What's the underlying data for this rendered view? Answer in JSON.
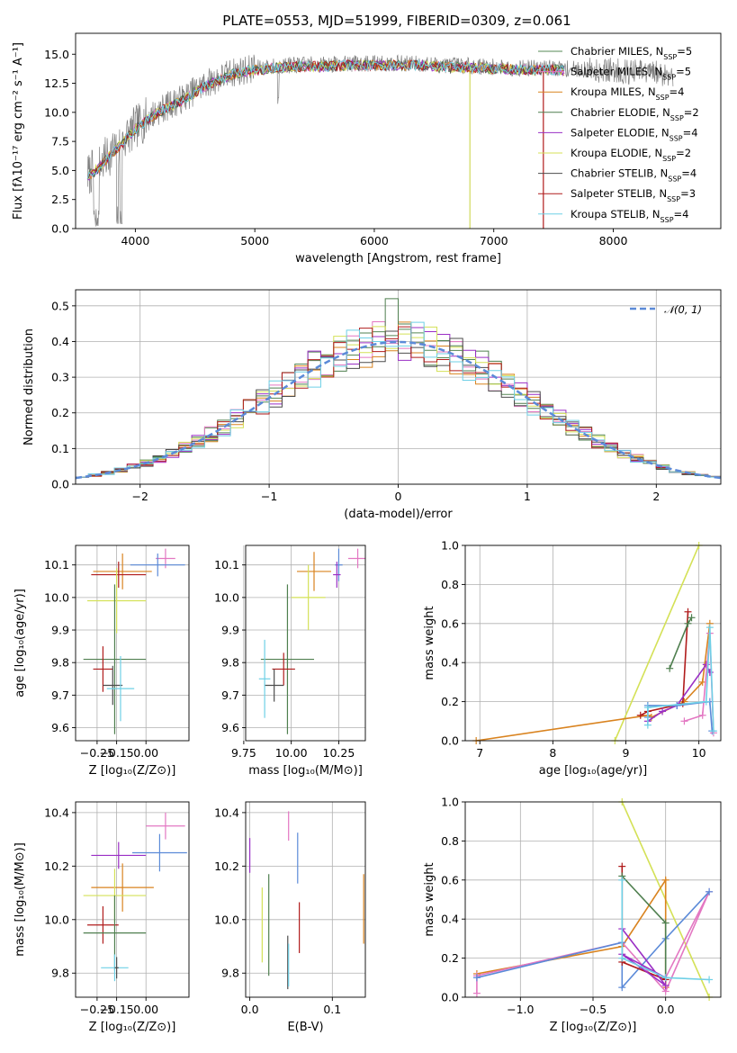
{
  "figure": {
    "title": "PLATE=0553, MJD=51999, FIBERID=0309, z=0.061"
  },
  "colors": {
    "observed": "#808080",
    "series": [
      "#558855",
      "#e377c2",
      "#d9831f",
      "#4f7f4f",
      "#9a2fc5",
      "#d4e157",
      "#4d4d4d",
      "#b01c1c",
      "#6fd0e6"
    ],
    "extra_blue": "#5b8ad8",
    "normal_curve": "#5b8ad8"
  },
  "chart_data": [
    {
      "id": "spectrum",
      "type": "line",
      "xlabel": "wavelength [Angstrom, rest frame]",
      "ylabel": "Flux [fλ10⁻¹⁷ erg cm⁻² s⁻¹ A⁻¹]",
      "xlim": [
        3500,
        8900
      ],
      "ylim": [
        0,
        16.8
      ],
      "xticks": [
        4000,
        5000,
        6000,
        7000,
        8000
      ],
      "yticks": [
        0.0,
        2.5,
        5.0,
        7.5,
        10.0,
        12.5,
        15.0
      ],
      "yticklabels": [
        "0.0",
        "2.5",
        "5.0",
        "7.5",
        "10.0",
        "12.5",
        "15.0"
      ],
      "continuum": [
        [
          3600,
          4.6
        ],
        [
          3700,
          5.4
        ],
        [
          3800,
          6.6
        ],
        [
          3900,
          7.6
        ],
        [
          4000,
          8.7
        ],
        [
          4100,
          9.5
        ],
        [
          4200,
          10.2
        ],
        [
          4300,
          10.7
        ],
        [
          4400,
          11.2
        ],
        [
          4500,
          11.9
        ],
        [
          4600,
          12.5
        ],
        [
          4700,
          12.9
        ],
        [
          4800,
          13.4
        ],
        [
          4900,
          13.6
        ],
        [
          5000,
          13.8
        ],
        [
          5200,
          14.0
        ],
        [
          5400,
          14.1
        ],
        [
          5600,
          14.1
        ],
        [
          5800,
          14.2
        ],
        [
          6000,
          14.2
        ],
        [
          6300,
          14.2
        ],
        [
          6500,
          14.1
        ],
        [
          6800,
          14.0
        ],
        [
          7000,
          13.9
        ],
        [
          7300,
          13.8
        ],
        [
          7500,
          13.8
        ],
        [
          7700,
          13.7
        ],
        [
          8000,
          13.6
        ],
        [
          8300,
          13.4
        ],
        [
          8500,
          13.3
        ]
      ],
      "legend": [
        "Chabrier MILES, N_SSP=5",
        "Salpeter MILES, N_SSP=5",
        "Kroupa MILES, N_SSP=4",
        "Chabrier ELODIE, N_SSP=2",
        "Salpeter ELODIE, N_SSP=4",
        "Kroupa ELODIE, N_SSP=2",
        "Chabrier STELIB, N_SSP=4",
        "Salpeter STELIB, N_SSP=3",
        "Kroupa STELIB, N_SSP=4"
      ],
      "legend_position": "right"
    },
    {
      "id": "residuals",
      "type": "line",
      "xlabel": "(data-model)/error",
      "ylabel": "Normed distribution",
      "xlim": [
        -2.5,
        2.5
      ],
      "ylim": [
        0,
        0.545
      ],
      "xticks": [
        -2,
        -1,
        0,
        1,
        2
      ],
      "xticklabels": [
        "−2",
        "−1",
        "0",
        "1",
        "2"
      ],
      "yticks": [
        0.0,
        0.1,
        0.2,
        0.3,
        0.4,
        0.5
      ],
      "yticklabels": [
        "0.0",
        "0.1",
        "0.2",
        "0.3",
        "0.4",
        "0.5"
      ],
      "bin_width": 0.1,
      "legend": [
        "𝒩(0, 1)"
      ],
      "legend_position": "top-right"
    },
    {
      "id": "age-vs-Z",
      "type": "scatter",
      "xlabel": "Z [log₁₀(Z/Z⊙)]",
      "ylabel": "age  [log₁₀(age/yr)]",
      "xlim": [
        -0.36,
        0.22
      ],
      "ylim": [
        9.56,
        10.16
      ],
      "xticks": [
        -0.25,
        -0.15,
        0.0
      ],
      "xticklabels": [
        "−0.25",
        "−0.15",
        "0.00"
      ],
      "yticks": [
        9.6,
        9.7,
        9.8,
        9.9,
        10.0,
        10.1
      ],
      "yticklabels": [
        "9.6",
        "9.7",
        "9.8",
        "9.9",
        "10.0",
        "10.1"
      ],
      "points": [
        {
          "c": 1,
          "x": 0.1,
          "y": 10.12,
          "xe": 0.05,
          "ye": 0.03
        },
        {
          "c": 9,
          "x": 0.06,
          "y": 10.1,
          "xe": 0.14,
          "ye": 0.035
        },
        {
          "c": 2,
          "x": -0.12,
          "y": 10.08,
          "xe": 0.15,
          "ye": 0.055
        },
        {
          "c": 7,
          "x": -0.14,
          "y": 10.07,
          "xe": 0.14,
          "ye": 0.04
        },
        {
          "c": 5,
          "x": -0.15,
          "y": 9.99,
          "xe": 0.15,
          "ye": 0.1
        },
        {
          "c": 3,
          "x": -0.16,
          "y": 9.81,
          "xe": 0.16,
          "ye": 0.23
        },
        {
          "c": 7,
          "x": -0.22,
          "y": 9.78,
          "xe": 0.05,
          "ye": 0.07
        },
        {
          "c": 6,
          "x": -0.17,
          "y": 9.73,
          "xe": 0.05,
          "ye": 0.06
        },
        {
          "c": 8,
          "x": -0.13,
          "y": 9.72,
          "xe": 0.07,
          "ye": 0.1
        }
      ]
    },
    {
      "id": "age-vs-mass",
      "type": "scatter",
      "xlabel": "mass [log₁₀(M/M⊙)]",
      "ylabel": "",
      "xlim": [
        9.76,
        10.39
      ],
      "ylim": [
        9.56,
        10.16
      ],
      "xticks": [
        9.75,
        10.0,
        10.25
      ],
      "xticklabels": [
        "9.75",
        "10.00",
        "10.25"
      ],
      "yticks": [
        9.6,
        9.7,
        9.8,
        9.9,
        10.0,
        10.1
      ],
      "yticklabels": [
        "9.6",
        "9.7",
        "9.8",
        "9.9",
        "10.0",
        "10.1"
      ],
      "points": [
        {
          "c": 1,
          "x": 10.35,
          "y": 10.12,
          "xe": 0.05,
          "ye": 0.03
        },
        {
          "c": 9,
          "x": 10.25,
          "y": 10.1,
          "xe": 0.02,
          "ye": 0.05
        },
        {
          "c": 2,
          "x": 10.12,
          "y": 10.08,
          "xe": 0.09,
          "ye": 0.06
        },
        {
          "c": 4,
          "x": 10.24,
          "y": 10.07,
          "xe": 0.02,
          "ye": 0.04
        },
        {
          "c": 5,
          "x": 10.09,
          "y": 10.0,
          "xe": 0.09,
          "ye": 0.1
        },
        {
          "c": 3,
          "x": 9.98,
          "y": 9.81,
          "xe": 0.14,
          "ye": 0.23
        },
        {
          "c": 7,
          "x": 9.96,
          "y": 9.78,
          "xe": 0.06,
          "ye": 0.05
        },
        {
          "c": 6,
          "x": 9.91,
          "y": 9.73,
          "xe": 0.05,
          "ye": 0.05
        },
        {
          "c": 8,
          "x": 9.86,
          "y": 9.75,
          "xe": 0.03,
          "ye": 0.12
        }
      ]
    },
    {
      "id": "mass-weight-vs-age",
      "type": "line",
      "xlabel": "age  [log₁₀(age/yr)]",
      "ylabel": "mass weight",
      "xlim": [
        6.8,
        10.3
      ],
      "ylim": [
        0,
        1.0
      ],
      "xticks": [
        7,
        8,
        9,
        10
      ],
      "xticklabels": [
        "7",
        "8",
        "9",
        "10"
      ],
      "yticks": [
        0.0,
        0.2,
        0.4,
        0.6,
        0.8,
        1.0
      ],
      "yticklabels": [
        "0.0",
        "0.2",
        "0.4",
        "0.6",
        "0.8",
        "1.0"
      ],
      "series": [
        {
          "c": 5,
          "points": [
            [
              8.85,
              0.0
            ],
            [
              10.0,
              1.0
            ]
          ]
        },
        {
          "c": 2,
          "points": [
            [
              6.95,
              0.0
            ],
            [
              9.3,
              0.13
            ],
            [
              9.35,
              0.12
            ],
            [
              9.8,
              0.2
            ],
            [
              10.05,
              0.3
            ],
            [
              10.15,
              0.6
            ]
          ]
        },
        {
          "c": 7,
          "points": [
            [
              9.2,
              0.13
            ],
            [
              9.3,
              0.15
            ],
            [
              9.78,
              0.19
            ],
            [
              9.85,
              0.66
            ]
          ]
        },
        {
          "c": 3,
          "points": [
            [
              9.6,
              0.37
            ],
            [
              9.85,
              0.6
            ],
            [
              9.9,
              0.63
            ]
          ]
        },
        {
          "c": 4,
          "points": [
            [
              9.3,
              0.1
            ],
            [
              9.5,
              0.15
            ],
            [
              9.7,
              0.18
            ],
            [
              10.1,
              0.39
            ],
            [
              10.15,
              0.35
            ]
          ]
        },
        {
          "c": 9,
          "points": [
            [
              9.3,
              0.12
            ],
            [
              9.3,
              0.18
            ],
            [
              9.7,
              0.18
            ],
            [
              10.15,
              0.2
            ],
            [
              10.18,
              0.05
            ]
          ]
        },
        {
          "c": 1,
          "points": [
            [
              9.8,
              0.1
            ],
            [
              10.05,
              0.13
            ],
            [
              10.15,
              0.55
            ],
            [
              10.2,
              0.04
            ]
          ]
        },
        {
          "c": 8,
          "points": [
            [
              9.3,
              0.08
            ],
            [
              9.3,
              0.17
            ],
            [
              10.1,
              0.2
            ],
            [
              10.15,
              0.58
            ],
            [
              10.2,
              0.05
            ]
          ]
        }
      ]
    },
    {
      "id": "mass-vs-Z",
      "type": "scatter",
      "xlabel": "Z [log₁₀(Z/Z⊙)]",
      "ylabel": "mass [log₁₀(M/M⊙)]",
      "xlim": [
        -0.36,
        0.22
      ],
      "ylim": [
        9.71,
        10.44
      ],
      "xticks": [
        -0.25,
        -0.15,
        0.0
      ],
      "xticklabels": [
        "−0.25",
        "−0.15",
        "0.00"
      ],
      "yticks": [
        9.8,
        10.0,
        10.2,
        10.4
      ],
      "yticklabels": [
        "9.8",
        "10.0",
        "10.2",
        "10.4"
      ],
      "points": [
        {
          "c": 1,
          "x": 0.1,
          "y": 10.35,
          "xe": 0.1,
          "ye": 0.05
        },
        {
          "c": 9,
          "x": 0.07,
          "y": 10.25,
          "xe": 0.14,
          "ye": 0.07
        },
        {
          "c": 4,
          "x": -0.14,
          "y": 10.24,
          "xe": 0.14,
          "ye": 0.05
        },
        {
          "c": 2,
          "x": -0.12,
          "y": 10.12,
          "xe": 0.16,
          "ye": 0.09
        },
        {
          "c": 5,
          "x": -0.16,
          "y": 10.09,
          "xe": 0.16,
          "ye": 0.1
        },
        {
          "c": 7,
          "x": -0.22,
          "y": 9.98,
          "xe": 0.08,
          "ye": 0.07
        },
        {
          "c": 3,
          "x": -0.16,
          "y": 9.95,
          "xe": 0.16,
          "ye": 0.14
        },
        {
          "c": 8,
          "x": -0.16,
          "y": 9.82,
          "xe": 0.07,
          "ye": 0.05
        },
        {
          "c": 6,
          "x": -0.15,
          "y": 9.82,
          "xe": 0.01,
          "ye": 0.04
        }
      ]
    },
    {
      "id": "mass-vs-EBV",
      "type": "scatter",
      "xlabel": "E(B-V)",
      "ylabel": "",
      "xlim": [
        -0.005,
        0.14
      ],
      "ylim": [
        9.71,
        10.44
      ],
      "xticks": [
        0.0,
        0.1
      ],
      "xticklabels": [
        "0.0",
        "0.1"
      ],
      "yticks": [
        9.8,
        10.0,
        10.2,
        10.4
      ],
      "yticklabels": [
        "9.8",
        "10.0",
        "10.2",
        "10.4"
      ],
      "points": [
        {
          "c": 4,
          "x": 0.0,
          "y": 10.24,
          "xe": 0,
          "ye": 0.065
        },
        {
          "c": 1,
          "x": 0.047,
          "y": 10.35,
          "xe": 0,
          "ye": 0.055
        },
        {
          "c": 9,
          "x": 0.058,
          "y": 10.23,
          "xe": 0,
          "ye": 0.095
        },
        {
          "c": 5,
          "x": 0.015,
          "y": 9.98,
          "xe": 0,
          "ye": 0.14
        },
        {
          "c": 3,
          "x": 0.023,
          "y": 9.98,
          "xe": 0,
          "ye": 0.19
        },
        {
          "c": 7,
          "x": 0.06,
          "y": 9.97,
          "xe": 0,
          "ye": 0.095
        },
        {
          "c": 6,
          "x": 0.046,
          "y": 9.84,
          "xe": 0,
          "ye": 0.1
        },
        {
          "c": 8,
          "x": 0.047,
          "y": 9.83,
          "xe": 0,
          "ye": 0.08
        },
        {
          "c": 2,
          "x": 0.138,
          "y": 10.04,
          "xe": 0,
          "ye": 0.13
        }
      ]
    },
    {
      "id": "mass-weight-vs-Z",
      "type": "line",
      "xlabel": "Z [log₁₀(Z/Z⊙)]",
      "ylabel": "mass weight",
      "xlim": [
        -1.38,
        0.38
      ],
      "ylim": [
        0,
        1.0
      ],
      "xticks": [
        -1.0,
        -0.5,
        0.0
      ],
      "xticklabels": [
        "−1.0",
        "−0.5",
        "0.0"
      ],
      "yticks": [
        0.0,
        0.2,
        0.4,
        0.6,
        0.8,
        1.0
      ],
      "yticklabels": [
        "0.0",
        "0.2",
        "0.4",
        "0.6",
        "0.8",
        "1.0"
      ],
      "series": [
        {
          "c": 5,
          "points": [
            [
              -0.3,
              1.0
            ],
            [
              0.3,
              0.0
            ]
          ]
        },
        {
          "c": 2,
          "points": [
            [
              -1.3,
              0.12
            ],
            [
              -0.3,
              0.26
            ],
            [
              0.0,
              0.6
            ],
            [
              0.0,
              0.05
            ]
          ]
        },
        {
          "c": 1,
          "points": [
            [
              -1.3,
              0.02
            ],
            [
              -1.3,
              0.11
            ],
            [
              -0.3,
              0.28
            ],
            [
              0.0,
              0.03
            ],
            [
              0.3,
              0.54
            ],
            [
              0.0,
              0.1
            ]
          ]
        },
        {
          "c": 9,
          "points": [
            [
              -1.3,
              0.1
            ],
            [
              -0.3,
              0.28
            ],
            [
              -0.3,
              0.05
            ],
            [
              0.0,
              0.3
            ],
            [
              0.3,
              0.54
            ]
          ]
        },
        {
          "c": 7,
          "points": [
            [
              -0.3,
              0.67
            ],
            [
              -0.3,
              0.18
            ],
            [
              0.0,
              0.09
            ]
          ]
        },
        {
          "c": 3,
          "points": [
            [
              -0.3,
              0.62
            ],
            [
              0.0,
              0.38
            ],
            [
              0.0,
              0.1
            ]
          ]
        },
        {
          "c": 4,
          "points": [
            [
              -0.3,
              0.35
            ],
            [
              0.0,
              0.06
            ],
            [
              -0.3,
              0.22
            ],
            [
              0.0,
              0.1
            ]
          ]
        },
        {
          "c": 8,
          "points": [
            [
              -0.3,
              0.6
            ],
            [
              -0.3,
              0.2
            ],
            [
              0.0,
              0.1
            ],
            [
              0.3,
              0.09
            ]
          ]
        }
      ]
    }
  ]
}
